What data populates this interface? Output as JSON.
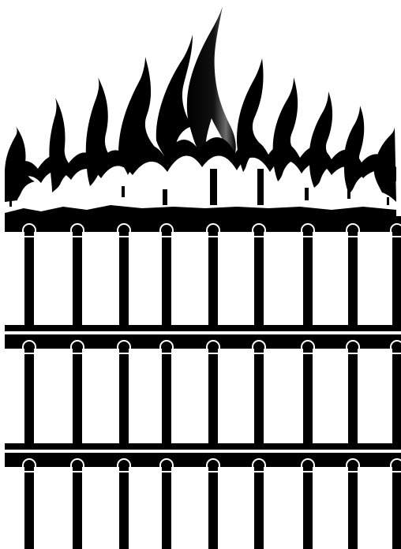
{
  "illustration": {
    "subject": "flame-topped-iron-gate",
    "colors": {
      "ink": "#000000",
      "paper": "#ffffff",
      "highlight": "#6e6e6e"
    },
    "bar_count": 9,
    "rail_count": 3
  }
}
